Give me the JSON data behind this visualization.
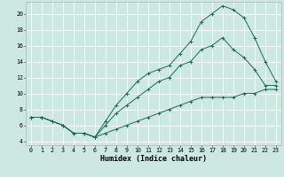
{
  "xlabel": "Humidex (Indice chaleur)",
  "bg_color": "#cce8e0",
  "grid_color": "#ffffff",
  "line_color": "#1a6b5a",
  "xlim": [
    -0.5,
    23.5
  ],
  "ylim": [
    3.5,
    21.5
  ],
  "xticks": [
    0,
    1,
    2,
    3,
    4,
    5,
    6,
    7,
    8,
    9,
    10,
    11,
    12,
    13,
    14,
    15,
    16,
    17,
    18,
    19,
    20,
    21,
    22,
    23
  ],
  "yticks": [
    4,
    6,
    8,
    10,
    12,
    14,
    16,
    18,
    20
  ],
  "series1_x": [
    0,
    1,
    2,
    3,
    4,
    5,
    6,
    7,
    8,
    9,
    10,
    11,
    12,
    13,
    14,
    15,
    16,
    17,
    18,
    19,
    20,
    21,
    22,
    23
  ],
  "series1_y": [
    7.0,
    7.0,
    6.5,
    6.0,
    5.0,
    5.0,
    4.5,
    6.5,
    8.5,
    10.0,
    11.5,
    12.5,
    13.0,
    13.5,
    15.0,
    16.5,
    19.0,
    20.0,
    21.0,
    20.5,
    19.5,
    17.0,
    14.0,
    11.5
  ],
  "series2_x": [
    0,
    1,
    2,
    3,
    4,
    5,
    6,
    7,
    8,
    9,
    10,
    11,
    12,
    13,
    14,
    15,
    16,
    17,
    18,
    19,
    20,
    21,
    22,
    23
  ],
  "series2_y": [
    7.0,
    7.0,
    6.5,
    6.0,
    5.0,
    5.0,
    4.5,
    5.0,
    5.5,
    6.0,
    6.5,
    7.0,
    7.5,
    8.0,
    8.5,
    9.0,
    9.5,
    9.5,
    9.5,
    9.5,
    10.0,
    10.0,
    10.5,
    10.5
  ],
  "series3_x": [
    0,
    1,
    2,
    3,
    4,
    5,
    6,
    7,
    8,
    9,
    10,
    11,
    12,
    13,
    14,
    15,
    16,
    17,
    18,
    19,
    20,
    21,
    22,
    23
  ],
  "series3_y": [
    7.0,
    7.0,
    6.5,
    6.0,
    5.0,
    5.0,
    4.5,
    6.0,
    7.5,
    8.5,
    9.5,
    10.5,
    11.5,
    12.0,
    13.5,
    14.0,
    15.5,
    16.0,
    17.0,
    15.5,
    14.5,
    13.0,
    11.0,
    11.0
  ],
  "xlabel_fontsize": 6.0,
  "tick_fontsize": 4.8,
  "lw": 0.7,
  "ms": 2.5
}
